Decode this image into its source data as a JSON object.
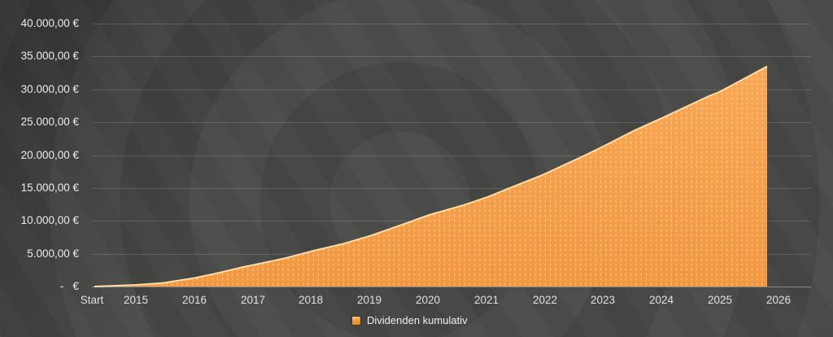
{
  "chart_data": {
    "type": "area",
    "subtype": "cumulative monthly bar series rendered as solid area with dashed bar separators",
    "title": "",
    "legend": [
      {
        "label": "Dividenden kumulativ"
      }
    ],
    "x_axis": {
      "labels": [
        "Start",
        "2015",
        "2016",
        "2017",
        "2018",
        "2019",
        "2020",
        "2021",
        "2022",
        "2023",
        "2024",
        "2025",
        "2026"
      ]
    },
    "y_axis": {
      "min": 0,
      "max": 40000,
      "step": 5000,
      "tick_labels": [
        "40.000,00 €",
        "35.000,00 €",
        "30.000,00 €",
        "25.000,00 €",
        "20.000,00 €",
        "15.000,00 €",
        "10.000,00 €",
        "5.000,00 €",
        "-   €"
      ]
    },
    "grid": "horizontal major gridlines on",
    "legend_position": "bottom center",
    "series": [
      {
        "name": "Dividenden kumulativ",
        "points_f_value": [
          [
            0.0,
            0
          ],
          [
            0.016,
            60
          ],
          [
            0.062,
            250
          ],
          [
            0.102,
            550
          ],
          [
            0.149,
            1300
          ],
          [
            0.186,
            2100
          ],
          [
            0.222,
            3000
          ],
          [
            0.237,
            3300
          ],
          [
            0.283,
            4300
          ],
          [
            0.324,
            5400
          ],
          [
            0.368,
            6450
          ],
          [
            0.411,
            7750
          ],
          [
            0.464,
            9650
          ],
          [
            0.498,
            10900
          ],
          [
            0.549,
            12400
          ],
          [
            0.585,
            13650
          ],
          [
            0.63,
            15500
          ],
          [
            0.667,
            17000
          ],
          [
            0.73,
            20000
          ],
          [
            0.756,
            21300
          ],
          [
            0.803,
            23750
          ],
          [
            0.843,
            25600
          ],
          [
            0.912,
            28900
          ],
          [
            0.929,
            29600
          ],
          [
            1.0,
            33500
          ]
        ],
        "values_at_year_ticks": {
          "Start": 0,
          "2015": 250,
          "2016": 1300,
          "2017": 3300,
          "2018": 5400,
          "2019": 7750,
          "2020": 10900,
          "2021": 13650,
          "2022": 17000,
          "2023": 21300,
          "2024": 25600,
          "2025": 29600,
          "end_of_series_late_2025": 33500
        }
      }
    ],
    "colors": {
      "area_fill_top": "#F9A855",
      "area_fill_bottom": "#F19740",
      "area_top_edge": "#FFDCA6",
      "bar_separator": "rgba(255,238,210,0.50)",
      "grid": "rgba(255,255,255,0.14)",
      "axis": "rgba(255,255,255,0.36)",
      "text": "#ECECEA",
      "background": "#454543",
      "legend_marker_light": "#FDD09C",
      "legend_marker_mid": "#F29D42",
      "legend_marker_dark": "#E5820F"
    }
  }
}
